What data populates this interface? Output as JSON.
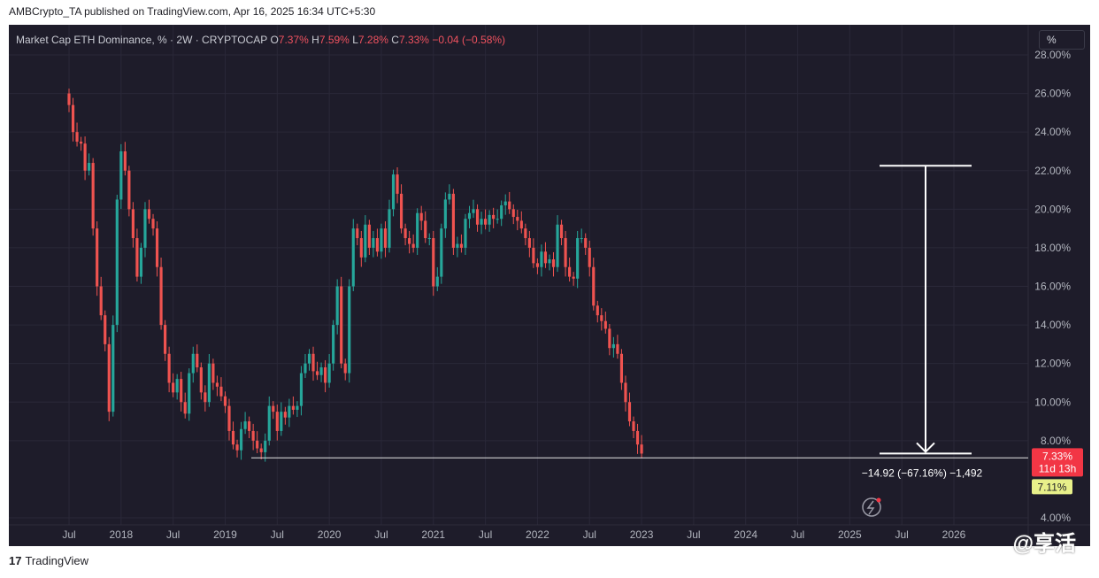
{
  "attribution": "AMBCrypto_TA published on TradingView.com, Apr 16, 2025 16:34 UTC+5:30",
  "legend": {
    "symbol": "Market Cap ETH Dominance, % · 2W · CRYPTOCAP",
    "o_label": "O",
    "o_value": "7.37%",
    "h_label": "H",
    "h_value": "7.59%",
    "l_label": "L",
    "l_value": "7.28%",
    "c_label": "C",
    "c_value": "7.33%",
    "change": "−0.04 (−0.58%)"
  },
  "scale_button": "%",
  "footer": {
    "logo_mark": "17",
    "brand": "TradingView"
  },
  "watermark": "@享活",
  "colors": {
    "up": "#26a69a",
    "down": "#ef5350",
    "background": "#1e1c2a",
    "text": "#b2b5be",
    "price_tag": "#f23645",
    "support_tag": "#e8f08a"
  },
  "chart_data": {
    "type": "candlestick",
    "title": "Market Cap ETH Dominance, % · 2W · CRYPTOCAP",
    "ylabel": "%",
    "ylim": [
      3.4,
      28.4
    ],
    "y_ticks": [
      "4.00%",
      "8.00%",
      "10.00%",
      "12.00%",
      "14.00%",
      "16.00%",
      "18.00%",
      "20.00%",
      "22.00%",
      "24.00%",
      "26.00%",
      "28.00%"
    ],
    "x_ticks": [
      {
        "label": "Jul",
        "t": 2017.5
      },
      {
        "label": "2018",
        "t": 2018.0
      },
      {
        "label": "Jul",
        "t": 2018.5
      },
      {
        "label": "2019",
        "t": 2019.0
      },
      {
        "label": "Jul",
        "t": 2019.5
      },
      {
        "label": "2020",
        "t": 2020.0
      },
      {
        "label": "Jul",
        "t": 2020.5
      },
      {
        "label": "2021",
        "t": 2021.0
      },
      {
        "label": "Jul",
        "t": 2021.5
      },
      {
        "label": "2022",
        "t": 2022.0
      },
      {
        "label": "Jul",
        "t": 2022.5
      },
      {
        "label": "2023",
        "t": 2023.0
      },
      {
        "label": "Jul",
        "t": 2023.5
      },
      {
        "label": "2024",
        "t": 2024.0
      },
      {
        "label": "Jul",
        "t": 2024.5
      },
      {
        "label": "2025",
        "t": 2025.0
      },
      {
        "label": "Jul",
        "t": 2025.5
      },
      {
        "label": "2026",
        "t": 2026.0
      }
    ],
    "period": "2W",
    "start": 2017.5,
    "closes": [
      25.4,
      24.0,
      23.5,
      23.4,
      22.0,
      22.4,
      19.0,
      16.0,
      14.5,
      13.0,
      9.5,
      14.0,
      20.5,
      23.0,
      22.0,
      20.0,
      18.5,
      16.5,
      18.0,
      20.0,
      19.5,
      19.0,
      17.0,
      14.0,
      12.5,
      11.0,
      10.5,
      11.2,
      10.0,
      9.4,
      11.5,
      12.5,
      11.8,
      10.5,
      10.0,
      12.0,
      11.0,
      10.8,
      10.3,
      9.8,
      8.5,
      7.8,
      7.5,
      8.6,
      9.0,
      8.5,
      8.0,
      7.6,
      7.4,
      8.0,
      9.8,
      9.5,
      8.5,
      9.5,
      9.2,
      9.8,
      9.6,
      9.8,
      11.5,
      12.0,
      12.5,
      11.6,
      11.4,
      11.8,
      11.0,
      12.0,
      14.0,
      16.0,
      12.0,
      11.5,
      16.0,
      19.0,
      18.5,
      17.5,
      19.2,
      18.0,
      18.5,
      17.8,
      19.0,
      18.0,
      20.0,
      21.8,
      20.8,
      19.0,
      18.5,
      18.2,
      18.0,
      19.8,
      19.4,
      18.5,
      18.5,
      16.0,
      16.5,
      19.0,
      20.5,
      20.8,
      18.0,
      18.2,
      18.0,
      19.5,
      19.8,
      20.0,
      19.2,
      19.5,
      19.2,
      19.7,
      19.5,
      19.5,
      20.2,
      20.4,
      20.0,
      19.6,
      19.4,
      19.0,
      18.5,
      18.0,
      17.2,
      17.0,
      17.8,
      17.2,
      17.4,
      17.0,
      19.2,
      18.5,
      17.0,
      16.5,
      16.4,
      18.5,
      18.5,
      18.0,
      17.0,
      15.0,
      14.5,
      14.2,
      13.8,
      12.8,
      13.0,
      12.5,
      11.0,
      10.0,
      9.0,
      8.5,
      7.8,
      7.33
    ]
  },
  "annotations": {
    "measure_label": "−14.92 (−67.16%) −1,492",
    "measure_top": 22.25,
    "measure_bottom": 7.33,
    "support_level": 7.11,
    "current_price": "7.33%",
    "countdown": "11d 13h",
    "support_price": "7.11%"
  }
}
